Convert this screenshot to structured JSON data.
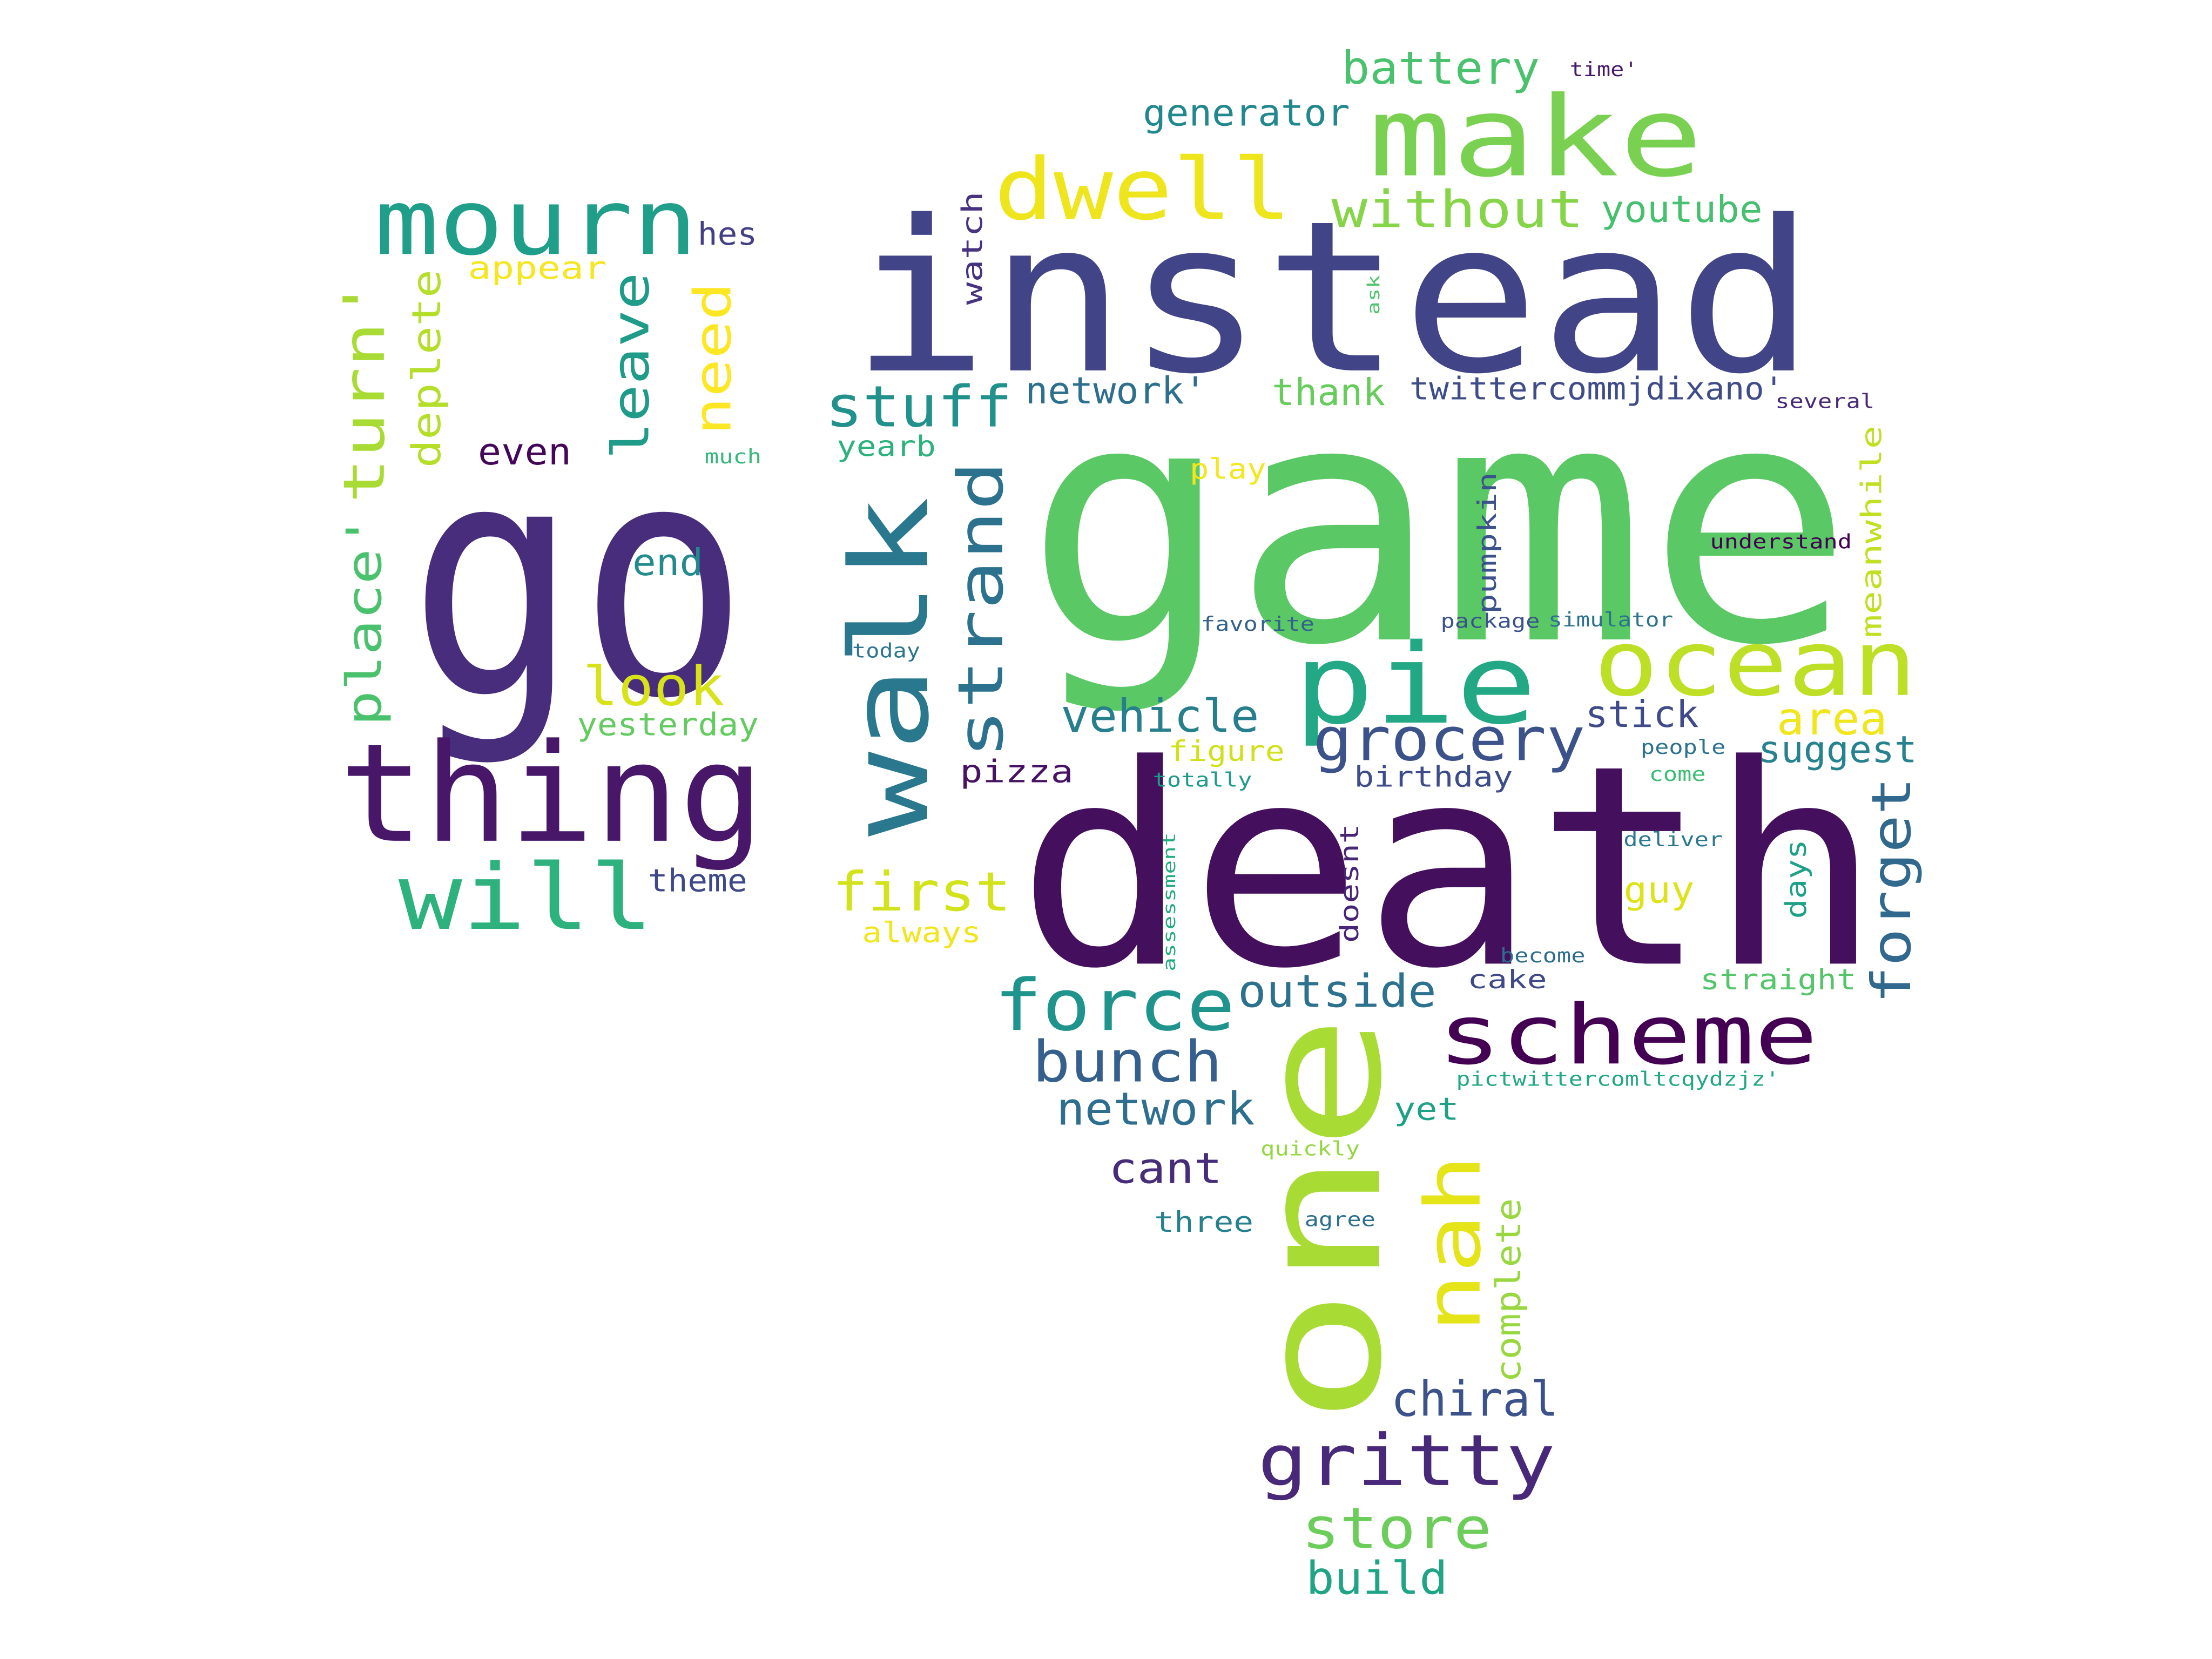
{
  "words": [
    {
      "text": "game",
      "color": "#5ac864"
    },
    {
      "text": "death",
      "color": "#440f5c"
    },
    {
      "text": "instead",
      "color": "#414487"
    },
    {
      "text": "go",
      "color": "#472d7b"
    },
    {
      "text": "one",
      "color": "#a8db34"
    },
    {
      "text": "thing",
      "color": "#481769"
    },
    {
      "text": "make",
      "color": "#7ad151"
    },
    {
      "text": "walk",
      "color": "#2a788e"
    },
    {
      "text": "pie",
      "color": "#22a884"
    },
    {
      "text": "ocean",
      "color": "#bddf26"
    },
    {
      "text": "scheme",
      "color": "#440154"
    },
    {
      "text": "nah",
      "color": "#e5e419"
    },
    {
      "text": "mourn",
      "color": "#1f9e89"
    },
    {
      "text": "dwell",
      "color": "#efe51c"
    },
    {
      "text": "will",
      "color": "#2db27d"
    },
    {
      "text": "strand",
      "color": "#2c728e"
    },
    {
      "text": "force",
      "color": "#1f948c"
    },
    {
      "text": "gritty",
      "color": "#482878"
    },
    {
      "text": "grocery",
      "color": "#3b528b"
    },
    {
      "text": "forget",
      "color": "#31688e"
    },
    {
      "text": "turn'",
      "color": "#a8db34"
    },
    {
      "text": "stuff",
      "color": "#21918c"
    },
    {
      "text": "bunch",
      "color": "#355f8d"
    },
    {
      "text": "first",
      "color": "#d2e21b"
    },
    {
      "text": "store",
      "color": "#6ccd5a"
    },
    {
      "text": "without",
      "color": "#86d549"
    },
    {
      "text": "look",
      "color": "#d8e219"
    },
    {
      "text": "need",
      "color": "#fde725"
    },
    {
      "text": "leave",
      "color": "#1e9c89"
    },
    {
      "text": "place'",
      "color": "#4ac16d"
    },
    {
      "text": "chiral",
      "color": "#3b528b"
    },
    {
      "text": "build",
      "color": "#20a486"
    },
    {
      "text": "network",
      "color": "#2e6e8e"
    },
    {
      "text": "outside",
      "color": "#2c728e"
    },
    {
      "text": "battery",
      "color": "#4ac16d"
    },
    {
      "text": "vehicle",
      "color": "#277f8e"
    },
    {
      "text": "area",
      "color": "#f1e51d"
    },
    {
      "text": "deplete",
      "color": "#b5de2b"
    },
    {
      "text": "cant",
      "color": "#472c7a"
    },
    {
      "text": "complete",
      "color": "#98d83e"
    },
    {
      "text": "generator",
      "color": "#23888e"
    },
    {
      "text": "network'",
      "color": "#2d708e"
    },
    {
      "text": "suggest",
      "color": "#26828e"
    },
    {
      "text": "stick",
      "color": "#3e4a89"
    },
    {
      "text": "thank",
      "color": "#67cc5c"
    },
    {
      "text": "youtube",
      "color": "#46c06f"
    },
    {
      "text": "twittercommjdixano'",
      "color": "#3e4c8a"
    },
    {
      "text": "guy",
      "color": "#dde318"
    },
    {
      "text": "end",
      "color": "#238a8d"
    },
    {
      "text": "even",
      "color": "#450559"
    },
    {
      "text": "yesterday",
      "color": "#63cb5f"
    },
    {
      "text": "appear",
      "color": "#f6e620"
    },
    {
      "text": "hes",
      "color": "#423f85"
    },
    {
      "text": "theme",
      "color": "#3f4889"
    },
    {
      "text": "birthday",
      "color": "#3d4d8a"
    },
    {
      "text": "figure",
      "color": "#d0e11c"
    },
    {
      "text": "pizza",
      "color": "#471164"
    },
    {
      "text": "straight",
      "color": "#54c568"
    },
    {
      "text": "yet",
      "color": "#1fa187"
    },
    {
      "text": "always",
      "color": "#f1e51d"
    },
    {
      "text": "watch",
      "color": "#46327e"
    },
    {
      "text": "meanwhile",
      "color": "#c2df23"
    },
    {
      "text": "days",
      "color": "#1fa088"
    },
    {
      "text": "pumpkin",
      "color": "#3b528b"
    },
    {
      "text": "doesnt",
      "color": "#482576"
    },
    {
      "text": "three",
      "color": "#26818e"
    },
    {
      "text": "yearb",
      "color": "#2db27d"
    },
    {
      "text": "play",
      "color": "#f4e61e"
    },
    {
      "text": "cake",
      "color": "#3e4a89"
    },
    {
      "text": "time'",
      "color": "#48186a"
    },
    {
      "text": "several",
      "color": "#482979"
    },
    {
      "text": "understand",
      "color": "#440154"
    },
    {
      "text": "package",
      "color": "#3b528b"
    },
    {
      "text": "simulator",
      "color": "#2c728e"
    },
    {
      "text": "favorite",
      "color": "#34618d"
    },
    {
      "text": "today",
      "color": "#2a768e"
    },
    {
      "text": "totally",
      "color": "#1f9a8a"
    },
    {
      "text": "people",
      "color": "#2c728e"
    },
    {
      "text": "come",
      "color": "#3dbc74"
    },
    {
      "text": "deliver",
      "color": "#2a788e"
    },
    {
      "text": "become",
      "color": "#2f6c8e"
    },
    {
      "text": "agree",
      "color": "#2d708e"
    },
    {
      "text": "quickly",
      "color": "#93d741"
    },
    {
      "text": "pictwittercomltcqydzjz'",
      "color": "#22a884"
    },
    {
      "text": "much",
      "color": "#35b779"
    },
    {
      "text": "ask",
      "color": "#4ec36b"
    },
    {
      "text": "assessment",
      "color": "#25ab82"
    }
  ]
}
